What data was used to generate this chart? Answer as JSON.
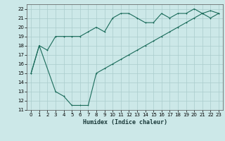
{
  "xlabel": "Humidex (Indice chaleur)",
  "background_color": "#cce8e8",
  "grid_color": "#aacccc",
  "line_color": "#1a6b5a",
  "xlim": [
    -0.5,
    23.5
  ],
  "ylim": [
    11,
    22.5
  ],
  "yticks": [
    11,
    12,
    13,
    14,
    15,
    16,
    17,
    18,
    19,
    20,
    21,
    22
  ],
  "xticks": [
    0,
    1,
    2,
    3,
    4,
    5,
    6,
    7,
    8,
    9,
    10,
    11,
    12,
    13,
    14,
    15,
    16,
    17,
    18,
    19,
    20,
    21,
    22,
    23
  ],
  "line1_x": [
    0,
    1,
    2,
    3,
    4,
    5,
    6,
    7,
    8,
    9,
    10,
    11,
    12,
    13,
    14,
    15,
    16,
    17,
    18,
    19,
    20,
    21,
    22,
    23
  ],
  "line1_y": [
    15,
    18,
    17.5,
    19,
    19,
    19,
    19,
    19.5,
    20,
    19.5,
    21,
    21.5,
    21.5,
    21,
    20.5,
    20.5,
    21.5,
    21,
    21.5,
    21.5,
    22,
    21.5,
    21,
    21.5
  ],
  "line2_x": [
    0,
    1,
    3,
    4,
    5,
    6,
    7,
    8,
    9,
    10,
    11,
    12,
    13,
    14,
    15,
    16,
    17,
    18,
    19,
    20,
    21,
    22,
    23
  ],
  "line2_y": [
    15,
    18,
    13,
    12.5,
    11.5,
    11.5,
    11.5,
    15,
    15.5,
    16,
    16.5,
    17,
    17.5,
    18,
    18.5,
    19,
    19.5,
    20,
    20.5,
    21,
    21.5,
    21.8,
    21.5
  ]
}
